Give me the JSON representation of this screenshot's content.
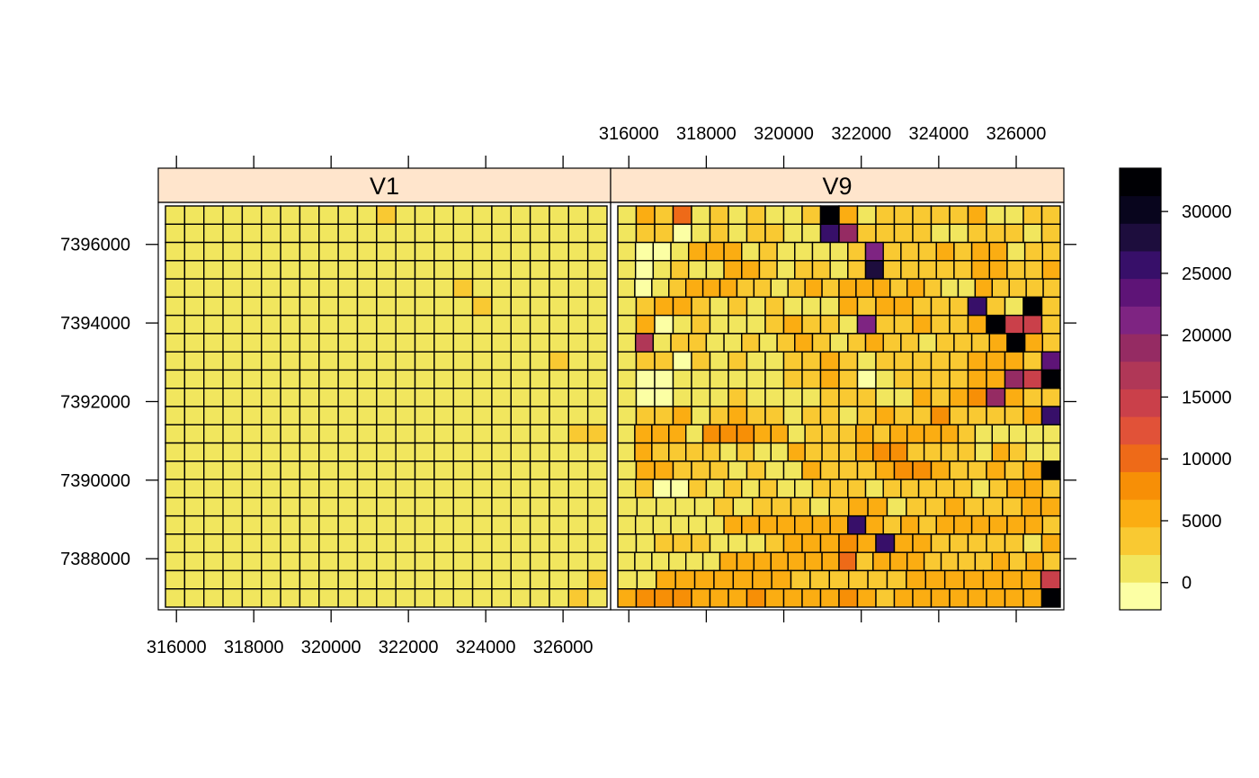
{
  "chart_data": {
    "type": "heatmap",
    "title": "",
    "xlabel": "",
    "ylabel": "",
    "panels": [
      {
        "name": "V1",
        "grid": [
          "11111111111211111111111",
          "11111111111111111111111",
          "11111111111111111111111",
          "11111111111111111111111",
          "11111111111111121111111",
          "11111111111111112111111",
          "11111111111111111111111",
          "11111111111111111111111",
          "11111111111111111111211",
          "11111111111111111111111",
          "11111111111111111111111",
          "11111111111111111111111",
          "11111111111111111111122",
          "11111111111111111111111",
          "11111111111111111111111",
          "11111111111111111111111",
          "11111111111111111111111",
          "11111111111111111111111",
          "11111111111111111111111",
          "11111111111111111111111",
          "11111111111111111111112",
          "11111111111111111111121"
        ]
      },
      {
        "name": "V9",
        "grid": [
          "13251212112F312222231122",
          "12201212211C922221122212",
          "10013331211112A2223233122",
          "10121133212212D2222233223",
          "10123332212323332321132222",
          "1233212121113233222C21G2",
          "1301211123221A223223H772",
          "1812211212321232212223F32",
          "12202121122321222223332B",
          "10011111122320122223397I",
          "100111211112221132349322",
          "12231232212212322422223C",
          "13331444331222323333211111",
          "13222212113222344222213211",
          "13322212113222344322323F",
          "1200212121122212222212332",
          "11111212221233122322233",
          "1111113333333C32323333332",
          "11222111233343C332222213",
          "11111133333335233322223232",
          "11333333322222233333337",
          "34443334333343233333333F"
        ]
      }
    ],
    "x_ticks": [
      "316000",
      "318000",
      "320000",
      "322000",
      "324000",
      "326000"
    ],
    "y_ticks": [
      "7388000",
      "7390000",
      "7392000",
      "7394000",
      "7396000"
    ],
    "x_range": [
      315530,
      327230
    ],
    "y_range": [
      7386700,
      7397070
    ],
    "colorbar": {
      "ticks": [
        "0",
        "5000",
        "10000",
        "15000",
        "20000",
        "25000",
        "30000"
      ],
      "range": [
        -2200,
        33500
      ],
      "colors": [
        "#FCFFA4",
        "#F1E65E",
        "#F9C932",
        "#FBAD12",
        "#F78F06",
        "#EE6A18",
        "#E15238",
        "#CA404A",
        "#B03757",
        "#952B63",
        "#7E2482",
        "#5E1477",
        "#370F69",
        "#1D0D3D",
        "#08051D",
        "#000004"
      ]
    }
  }
}
